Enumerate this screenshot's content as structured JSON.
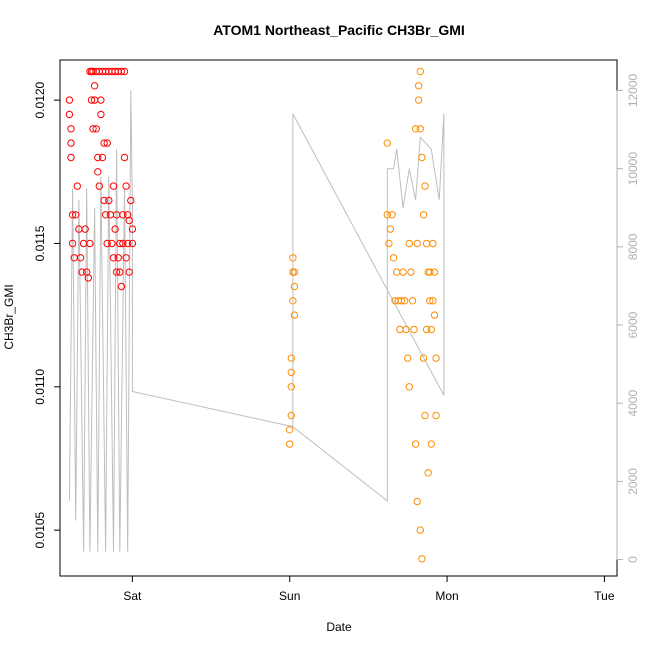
{
  "chart_data": {
    "type": "scatter",
    "title": "ATOM1 Northeast_Pacific CH3Br_GMI",
    "xlabel": "Date",
    "ylabel": "CH3Br_GMI",
    "x_ticks": [
      "Sat",
      "Sun",
      "Mon",
      "Tue"
    ],
    "y_ticks": [
      "0.0105",
      "0.0110",
      "0.0115",
      "0.0120"
    ],
    "y_ticks_values": [
      0.0105,
      0.011,
      0.0115,
      0.012
    ],
    "y2_ticks": [
      "0",
      "2000",
      "4000",
      "6000",
      "8000",
      "10000",
      "12000"
    ],
    "y2_ticks_values": [
      0,
      2000,
      4000,
      6000,
      8000,
      10000,
      12000
    ],
    "xlim": [
      -0.46,
      3.08
    ],
    "ylim": [
      0.01034,
      0.01214
    ],
    "y2lim": [
      -420,
      12780
    ],
    "grid": false,
    "legend": "none",
    "colors": {
      "series_red": "#ff0000",
      "series_orange": "#ff8c00",
      "altitude_line": "#bebebe"
    },
    "series": [
      {
        "color": "#ff0000",
        "axis": "left",
        "points": [
          [
            -0.4,
            0.012
          ],
          [
            -0.4,
            0.01195
          ],
          [
            -0.39,
            0.0119
          ],
          [
            -0.39,
            0.01185
          ],
          [
            -0.39,
            0.0118
          ],
          [
            -0.38,
            0.0116
          ],
          [
            -0.38,
            0.0115
          ],
          [
            -0.37,
            0.01145
          ],
          [
            -0.36,
            0.0116
          ],
          [
            -0.35,
            0.0117
          ],
          [
            -0.34,
            0.01155
          ],
          [
            -0.33,
            0.01145
          ],
          [
            -0.32,
            0.0114
          ],
          [
            -0.31,
            0.0115
          ],
          [
            -0.3,
            0.01155
          ],
          [
            -0.29,
            0.0114
          ],
          [
            -0.28,
            0.01138
          ],
          [
            -0.27,
            0.0115
          ],
          [
            -0.27,
            0.0121
          ],
          [
            -0.26,
            0.0121
          ],
          [
            -0.26,
            0.012
          ],
          [
            -0.25,
            0.0119
          ],
          [
            -0.25,
            0.0121
          ],
          [
            -0.24,
            0.01205
          ],
          [
            -0.24,
            0.012
          ],
          [
            -0.23,
            0.0121
          ],
          [
            -0.23,
            0.0119
          ],
          [
            -0.22,
            0.0118
          ],
          [
            -0.22,
            0.01175
          ],
          [
            -0.21,
            0.0117
          ],
          [
            -0.21,
            0.0121
          ],
          [
            -0.2,
            0.012
          ],
          [
            -0.2,
            0.01195
          ],
          [
            -0.19,
            0.0121
          ],
          [
            -0.19,
            0.0118
          ],
          [
            -0.18,
            0.01185
          ],
          [
            -0.18,
            0.01165
          ],
          [
            -0.17,
            0.0121
          ],
          [
            -0.17,
            0.0116
          ],
          [
            -0.16,
            0.0115
          ],
          [
            -0.16,
            0.01185
          ],
          [
            -0.15,
            0.0121
          ],
          [
            -0.15,
            0.01165
          ],
          [
            -0.14,
            0.0116
          ],
          [
            -0.13,
            0.0121
          ],
          [
            -0.13,
            0.0115
          ],
          [
            -0.12,
            0.01145
          ],
          [
            -0.12,
            0.0117
          ],
          [
            -0.11,
            0.0121
          ],
          [
            -0.11,
            0.01155
          ],
          [
            -0.1,
            0.0114
          ],
          [
            -0.1,
            0.0116
          ],
          [
            -0.09,
            0.01145
          ],
          [
            -0.09,
            0.0121
          ],
          [
            -0.08,
            0.0114
          ],
          [
            -0.08,
            0.0115
          ],
          [
            -0.07,
            0.01135
          ],
          [
            -0.07,
            0.0121
          ],
          [
            -0.06,
            0.0116
          ],
          [
            -0.06,
            0.0115
          ],
          [
            -0.05,
            0.0121
          ],
          [
            -0.05,
            0.0118
          ],
          [
            -0.04,
            0.01145
          ],
          [
            -0.04,
            0.0117
          ],
          [
            -0.03,
            0.0116
          ],
          [
            -0.03,
            0.0115
          ],
          [
            -0.02,
            0.0114
          ],
          [
            -0.02,
            0.01158
          ],
          [
            -0.01,
            0.01165
          ],
          [
            0.0,
            0.01155
          ],
          [
            0.0,
            0.0115
          ]
        ]
      },
      {
        "color": "#ff8c00",
        "axis": "left",
        "points": [
          [
            1.0,
            0.0108
          ],
          [
            1.0,
            0.01085
          ],
          [
            1.01,
            0.0109
          ],
          [
            1.01,
            0.011
          ],
          [
            1.01,
            0.01105
          ],
          [
            1.01,
            0.0111
          ],
          [
            1.02,
            0.0113
          ],
          [
            1.02,
            0.0114
          ],
          [
            1.02,
            0.01145
          ],
          [
            1.03,
            0.01135
          ],
          [
            1.03,
            0.01125
          ],
          [
            1.03,
            0.0114
          ],
          [
            1.62,
            0.01185
          ],
          [
            1.62,
            0.0116
          ],
          [
            1.63,
            0.0115
          ],
          [
            1.64,
            0.01155
          ],
          [
            1.65,
            0.0116
          ],
          [
            1.66,
            0.01145
          ],
          [
            1.67,
            0.0113
          ],
          [
            1.68,
            0.0114
          ],
          [
            1.69,
            0.0113
          ],
          [
            1.7,
            0.0112
          ],
          [
            1.71,
            0.0113
          ],
          [
            1.72,
            0.0114
          ],
          [
            1.73,
            0.0113
          ],
          [
            1.74,
            0.0112
          ],
          [
            1.75,
            0.0111
          ],
          [
            1.76,
            0.011
          ],
          [
            1.76,
            0.0115
          ],
          [
            1.77,
            0.0114
          ],
          [
            1.78,
            0.0113
          ],
          [
            1.79,
            0.0112
          ],
          [
            1.8,
            0.0108
          ],
          [
            1.8,
            0.0119
          ],
          [
            1.81,
            0.0106
          ],
          [
            1.81,
            0.0115
          ],
          [
            1.82,
            0.012
          ],
          [
            1.82,
            0.01205
          ],
          [
            1.83,
            0.0121
          ],
          [
            1.83,
            0.0119
          ],
          [
            1.83,
            0.0105
          ],
          [
            1.84,
            0.0104
          ],
          [
            1.84,
            0.0118
          ],
          [
            1.85,
            0.0116
          ],
          [
            1.85,
            0.0111
          ],
          [
            1.86,
            0.0109
          ],
          [
            1.86,
            0.0117
          ],
          [
            1.87,
            0.0115
          ],
          [
            1.87,
            0.0112
          ],
          [
            1.88,
            0.0114
          ],
          [
            1.88,
            0.0107
          ],
          [
            1.89,
            0.0113
          ],
          [
            1.89,
            0.0114
          ],
          [
            1.9,
            0.0112
          ],
          [
            1.9,
            0.0108
          ],
          [
            1.91,
            0.0115
          ],
          [
            1.91,
            0.0113
          ],
          [
            1.92,
            0.0114
          ],
          [
            1.92,
            0.01125
          ],
          [
            1.93,
            0.0111
          ],
          [
            1.93,
            0.0109
          ]
        ]
      },
      {
        "color": "#bebebe",
        "axis": "right",
        "style": "line",
        "points": [
          [
            -0.4,
            1500
          ],
          [
            -0.38,
            9500
          ],
          [
            -0.36,
            1000
          ],
          [
            -0.34,
            9200
          ],
          [
            -0.31,
            200
          ],
          [
            -0.29,
            9500
          ],
          [
            -0.27,
            200
          ],
          [
            -0.24,
            9000
          ],
          [
            -0.22,
            200
          ],
          [
            -0.2,
            9800
          ],
          [
            -0.17,
            200
          ],
          [
            -0.15,
            9800
          ],
          [
            -0.12,
            200
          ],
          [
            -0.1,
            10500
          ],
          [
            -0.08,
            200
          ],
          [
            -0.05,
            9500
          ],
          [
            -0.03,
            200
          ],
          [
            -0.01,
            12000
          ],
          [
            0.0,
            9000
          ],
          [
            0.0,
            4300
          ],
          [
            1.02,
            3400
          ],
          [
            1.62,
            1500
          ],
          [
            1.62,
            10000
          ],
          [
            1.66,
            10000
          ],
          [
            1.68,
            10500
          ],
          [
            1.72,
            9000
          ],
          [
            1.76,
            10000
          ],
          [
            1.8,
            9200
          ],
          [
            1.83,
            10800
          ],
          [
            1.9,
            10500
          ],
          [
            1.95,
            9200
          ],
          [
            1.98,
            11400
          ],
          [
            1.98,
            4200
          ],
          [
            1.02,
            11400
          ],
          [
            1.02,
            3400
          ]
        ]
      }
    ]
  }
}
